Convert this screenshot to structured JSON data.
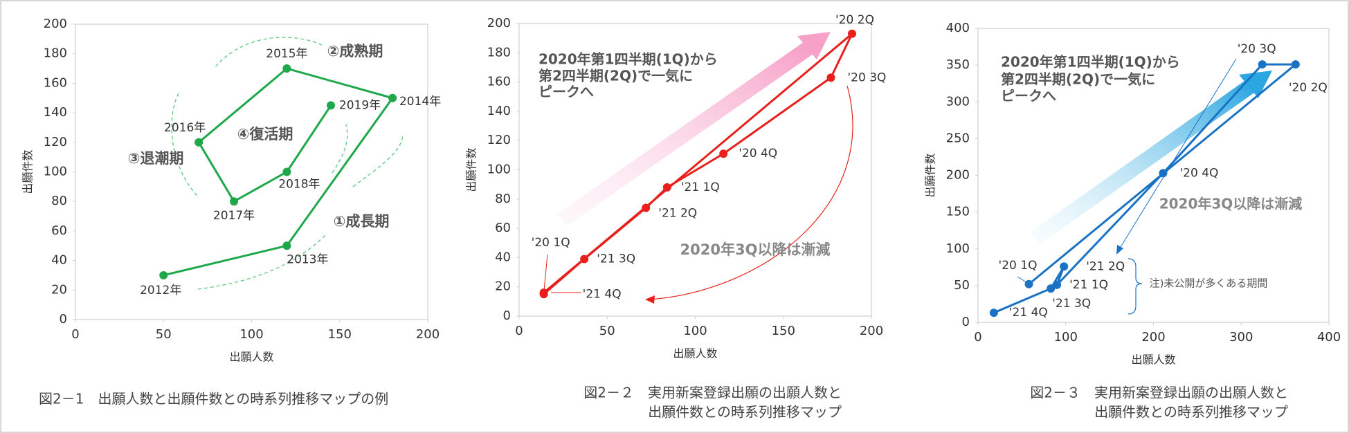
{
  "chart_data": [
    {
      "type": "line",
      "xlabel": "出願人数",
      "ylabel": "出願件数",
      "x": [
        50,
        120,
        180,
        120,
        70,
        90,
        120,
        145
      ],
      "series": [
        {
          "color": "#1fa84a",
          "values": [
            30,
            50,
            150,
            170,
            120,
            80,
            100,
            145
          ],
          "labels": [
            "2012年",
            "2013年",
            "2014年",
            "2015年",
            "2016年",
            "2017年",
            "2018年",
            "2019年"
          ]
        }
      ],
      "xlim": [
        0,
        200
      ],
      "xticks": [
        0,
        50,
        100,
        150,
        200
      ],
      "ylim": [
        0,
        200
      ],
      "yticks": [
        0,
        20,
        40,
        60,
        80,
        100,
        120,
        140,
        160,
        180,
        200
      ],
      "annotations": [
        [
          "①成長期"
        ],
        [
          "②成熟期"
        ],
        [
          "③退潮期"
        ],
        [
          "④復活期"
        ]
      ],
      "caption": [
        "図2－1　出願人数と出願件数との時系列推移マップの例"
      ]
    },
    {
      "type": "line",
      "xlabel": "出願人数",
      "ylabel": "出願件数",
      "x": [
        14,
        189,
        177,
        116,
        84,
        72,
        37,
        14
      ],
      "series": [
        {
          "color": "#e8201c",
          "values": [
            16,
            193,
            163,
            111,
            88,
            74,
            39,
            15
          ],
          "labels": [
            "'20 1Q",
            "'20 2Q",
            "'20 3Q",
            "'20 4Q",
            "'21 1Q",
            "'21 2Q",
            "'21 3Q",
            "'21 4Q"
          ]
        }
      ],
      "xlim": [
        0,
        200
      ],
      "xticks": [
        0,
        50,
        100,
        150,
        200
      ],
      "ylim": [
        0,
        200
      ],
      "yticks": [
        0,
        20,
        40,
        60,
        80,
        100,
        120,
        140,
        160,
        180,
        200
      ],
      "annotations": [
        [
          "2020年第1四半期(1Q)から",
          "第2四半期(2Q)で一気に",
          "ピークへ"
        ],
        [
          "2020年3Q以降は漸減"
        ]
      ],
      "caption": [
        "図2－２　実用新案登録出願の出願人数と",
        "出願件数との時系列推移マップ"
      ]
    },
    {
      "type": "line",
      "xlabel": "出願人数",
      "ylabel": "出願件数",
      "x": [
        58,
        362,
        324,
        211,
        90,
        98,
        83,
        18
      ],
      "series": [
        {
          "color": "#1a72c4",
          "values": [
            52,
            351,
            351,
            203,
            51,
            76,
            46,
            13
          ],
          "labels": [
            "'20 1Q",
            "'20 2Q",
            "'20 3Q",
            "'20 4Q",
            "'21 1Q",
            "'21 2Q",
            "'21 3Q",
            "'21 4Q"
          ]
        }
      ],
      "xlim": [
        0,
        400
      ],
      "xticks": [
        0,
        100,
        200,
        300,
        400
      ],
      "ylim": [
        0,
        400
      ],
      "yticks": [
        0,
        50,
        100,
        150,
        200,
        250,
        300,
        350,
        400
      ],
      "annotations": [
        [
          "2020年第1四半期(1Q)から",
          "第2四半期(2Q)で一気に",
          "ピークへ"
        ],
        [
          "2020年3Q以降は漸減"
        ],
        [
          "注)未公開が多くある期間"
        ]
      ],
      "caption": [
        "図2－３　実用新案登録出願の出願人数と",
        "出願件数との時系列推移マップ"
      ]
    }
  ]
}
